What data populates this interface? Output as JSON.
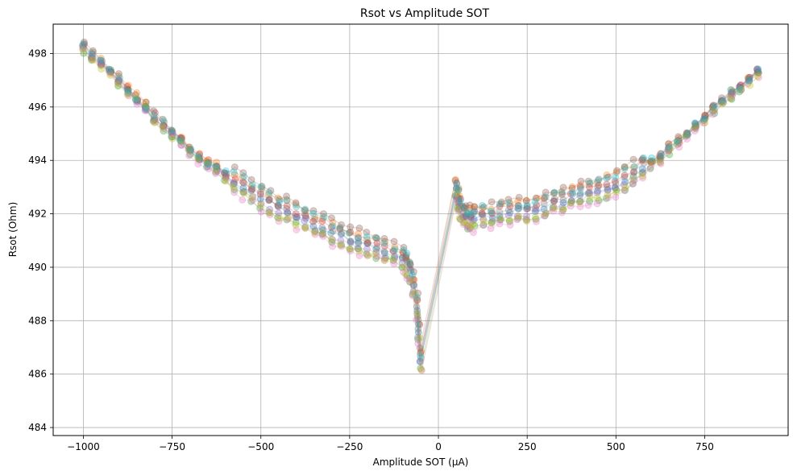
{
  "chart_data": {
    "type": "scatter",
    "title": "Rsot vs Amplitude SOT",
    "xlabel": "Amplitude SOT (µA)",
    "ylabel": "Rsot (Ohm)",
    "xlim": [
      -1085,
      985
    ],
    "ylim": [
      483.7,
      499.1
    ],
    "xticks": [
      -1000,
      -750,
      -500,
      -250,
      0,
      250,
      500,
      750
    ],
    "xtick_labels": [
      "−1000",
      "−750",
      "−500",
      "−250",
      "0",
      "250",
      "500",
      "750"
    ],
    "yticks": [
      484,
      486,
      488,
      490,
      492,
      494,
      496,
      498
    ],
    "ytick_labels": [
      "484",
      "486",
      "488",
      "490",
      "492",
      "494",
      "496",
      "498"
    ],
    "grid": true,
    "legend": "none",
    "marker": "circle",
    "marker_alpha": 0.3,
    "line_alpha": 0.2,
    "series_colors": [
      "#1f77b4",
      "#ff7f0e",
      "#2ca02c",
      "#d62728",
      "#9467bd",
      "#8c564b",
      "#e377c2",
      "#7f7f7f",
      "#bcbd22",
      "#17becf"
    ],
    "series_count": 10,
    "sweep": {
      "x": [
        -1000,
        -975,
        -950,
        -925,
        -900,
        -875,
        -850,
        -825,
        -800,
        -775,
        -750,
        -725,
        -700,
        -675,
        -650,
        -625,
        -600,
        -575,
        -550,
        -525,
        -500,
        -475,
        -450,
        -425,
        -400,
        -375,
        -350,
        -325,
        -300,
        -275,
        -250,
        -225,
        -200,
        -175,
        -150,
        -125,
        -100,
        -90,
        -80,
        -70,
        -60,
        -55,
        -50,
        50,
        55,
        60,
        70,
        80,
        90,
        100,
        125,
        150,
        175,
        200,
        225,
        250,
        275,
        300,
        325,
        350,
        375,
        400,
        425,
        450,
        475,
        500,
        525,
        550,
        575,
        600,
        625,
        650,
        675,
        700,
        725,
        750,
        775,
        800,
        825,
        850,
        875,
        900
      ],
      "y": [
        498.2,
        497.9,
        497.6,
        497.3,
        497.0,
        496.6,
        496.3,
        496.0,
        495.6,
        495.3,
        495.0,
        494.7,
        494.4,
        494.1,
        493.9,
        493.7,
        493.4,
        493.2,
        493.0,
        492.8,
        492.6,
        492.4,
        492.2,
        492.1,
        491.9,
        491.8,
        491.6,
        491.5,
        491.3,
        491.2,
        491.0,
        490.9,
        490.8,
        490.7,
        490.6,
        490.5,
        490.3,
        490.1,
        489.8,
        489.3,
        488.5,
        487.6,
        486.5,
        492.9,
        492.5,
        492.2,
        491.9,
        491.8,
        491.8,
        491.8,
        491.9,
        491.9,
        492.0,
        492.0,
        492.1,
        492.1,
        492.2,
        492.3,
        492.4,
        492.5,
        492.6,
        492.7,
        492.8,
        492.9,
        493.0,
        493.1,
        493.3,
        493.5,
        493.7,
        493.9,
        494.1,
        494.4,
        494.7,
        495.0,
        495.3,
        495.6,
        495.9,
        496.2,
        496.5,
        496.7,
        497.0,
        497.3
      ]
    },
    "series_offsets": [
      0.0,
      0.35,
      -0.3,
      0.2,
      -0.15,
      0.45,
      -0.4,
      0.1,
      -0.25,
      0.3
    ]
  }
}
